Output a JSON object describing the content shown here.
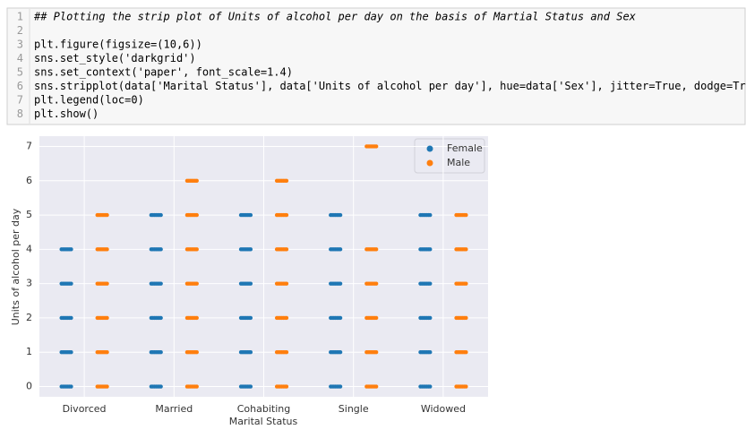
{
  "code": {
    "line_numbers": [
      "1",
      "2",
      "3",
      "4",
      "5",
      "6",
      "7",
      "8"
    ],
    "lines": [
      "## Plotting the strip plot of Units of alcohol per day on the basis of Martial Status and Sex",
      "",
      "plt.figure(figsize=(10,6))",
      "sns.set_style('darkgrid')",
      "sns.set_context('paper', font_scale=1.4)",
      "sns.stripplot(data['Marital Status'], data['Units of alcohol per day'], hue=data['Sex'], jitter=True, dodge=True)",
      "plt.legend(loc=0)",
      "plt.show()"
    ]
  },
  "chart_data": {
    "type": "strip",
    "xlabel": "Marital Status",
    "ylabel": "Units of alcohol per day",
    "categories": [
      "Divorced",
      "Married",
      "Cohabiting",
      "Single",
      "Widowed"
    ],
    "series": [
      {
        "name": "Female",
        "color": "#1f77b4",
        "values": [
          [
            0,
            1,
            2,
            3,
            4
          ],
          [
            0,
            1,
            2,
            3,
            4,
            5
          ],
          [
            0,
            1,
            2,
            3,
            4,
            5
          ],
          [
            0,
            1,
            2,
            3,
            4,
            5
          ],
          [
            0,
            1,
            2,
            3,
            4,
            5
          ]
        ]
      },
      {
        "name": "Male",
        "color": "#ff7f0e",
        "values": [
          [
            0,
            1,
            2,
            3,
            4,
            5
          ],
          [
            0,
            1,
            2,
            3,
            4,
            5,
            6
          ],
          [
            0,
            1,
            2,
            3,
            4,
            5,
            6
          ],
          [
            0,
            1,
            2,
            3,
            4,
            7
          ],
          [
            0,
            1,
            2,
            3,
            4,
            5
          ]
        ]
      }
    ],
    "ylim": [
      -0.3,
      7.3
    ],
    "yticks": [
      0,
      1,
      2,
      3,
      4,
      5,
      6,
      7
    ],
    "grid": true,
    "legend": "upper right"
  }
}
